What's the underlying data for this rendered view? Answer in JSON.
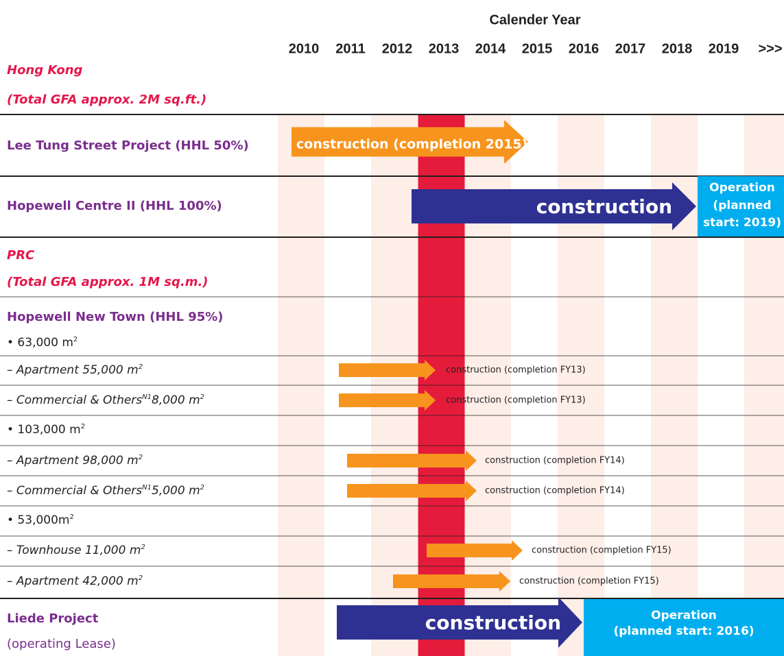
{
  "header": {
    "title": "Calender Year",
    "years": [
      "2010",
      "2011",
      "2012",
      "2013",
      "2014",
      "2015",
      "2016",
      "2017",
      "2018",
      "2019",
      ">>>"
    ]
  },
  "hong_kong": {
    "title": "Hong Kong",
    "subtitle": "(Total GFA approx. 2M sq.ft.)",
    "projects": [
      {
        "name": "Lee Tung Street Project (HHL 50%)",
        "bar": "construction (completion 2015)"
      },
      {
        "name": "Hopewell Centre II (HHL 100%)",
        "bar": "construction",
        "operation": [
          "Operation",
          "(planned",
          "start: 2019)"
        ]
      }
    ]
  },
  "prc": {
    "title": "PRC",
    "subtitle": "(Total GFA approx. 1M sq.m.)",
    "new_town": {
      "name": "Hopewell New Town (HHL 95%)",
      "phases": [
        {
          "area": [
            "• 63,000 m",
            "2"
          ],
          "items": [
            {
              "label": [
                "– Apartment 55,000 m",
                "2"
              ],
              "bar": "construction (completion FY13)"
            },
            {
              "label": [
                "– Commercial & Others",
                "N1",
                "8,000 m",
                "2"
              ],
              "bar": "construction (completion FY13)"
            }
          ]
        },
        {
          "area": [
            "• 103,000 m",
            "2"
          ],
          "items": [
            {
              "label": [
                "– Apartment 98,000 m",
                "2"
              ],
              "bar": "construction (completion FY14)"
            },
            {
              "label": [
                "– Commercial & Others",
                "N1",
                "5,000 m",
                "2"
              ],
              "bar": "construction (completion FY14)"
            }
          ]
        },
        {
          "area": [
            "• 53,000m",
            "2"
          ],
          "items": [
            {
              "label": [
                "– Townhouse 11,000 m",
                "2"
              ],
              "bar": "construction (completion FY15)"
            },
            {
              "label": [
                "– Apartment 42,000 m",
                "2"
              ],
              "bar": "construction (completion FY15)"
            }
          ]
        }
      ]
    },
    "liede": {
      "name": "Liede Project",
      "note": "(operating Lease)",
      "bar": "construction",
      "operation": [
        "Operation",
        "(planned start: 2016)"
      ]
    }
  }
}
